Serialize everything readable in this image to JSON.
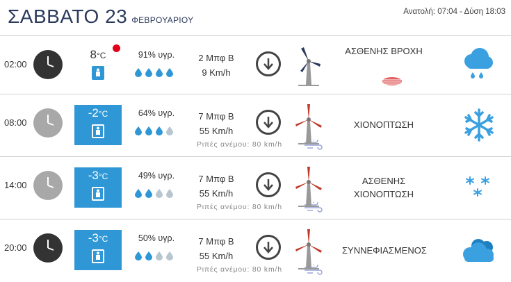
{
  "header": {
    "day": "ΣΑΒΒΑΤΟ 23",
    "month": "ΦΕΒΡΟΥΑΡΙΟΥ",
    "sun_times": "Ανατολή: 07:04 - Δύση 18:03"
  },
  "rows": [
    {
      "time": "02:00",
      "clock": "night-clock-icon",
      "temperature": "8",
      "temp_unit": "°C",
      "humidity": "91% υγρ.",
      "humidity_drops_filled": 4,
      "wind_beaufort": "2 Μπφ Β",
      "wind_speed": "9 Km/h",
      "gusts": "",
      "condition_line1": "ΑΣΘΕΝΗΣ ΒΡΟΧΗ",
      "condition_line2": "",
      "icon": "cloud-rain-icon"
    },
    {
      "time": "08:00",
      "clock": "day-clock-icon",
      "temperature": "-2",
      "temp_unit": "°C",
      "humidity": "64% υγρ.",
      "humidity_drops_filled": 3,
      "wind_beaufort": "7 Μπφ Β",
      "wind_speed": "55 Km/h",
      "gusts": "Ριπές ανέμου: 80 km/h",
      "condition_line1": "ΧΙΟΝΟΠΤΩΣΗ",
      "condition_line2": "",
      "icon": "snowflake-icon"
    },
    {
      "time": "14:00",
      "clock": "day-clock-icon",
      "temperature": "-3",
      "temp_unit": "°C",
      "humidity": "49% υγρ.",
      "humidity_drops_filled": 2,
      "wind_beaufort": "7 Μπφ Β",
      "wind_speed": "55 Km/h",
      "gusts": "Ριπές ανέμου: 80 km/h",
      "condition_line1": "ΑΣΘΕΝΗΣ",
      "condition_line2": "ΧΙΟΝΟΠΤΩΣΗ",
      "icon": "light-snow-icon"
    },
    {
      "time": "20:00",
      "clock": "night-clock-icon",
      "temperature": "-3",
      "temp_unit": "°C",
      "humidity": "50% υγρ.",
      "humidity_drops_filled": 2,
      "wind_beaufort": "7 Μπφ Β",
      "wind_speed": "55 Km/h",
      "gusts": "Ριπές ανέμου: 80 km/h",
      "condition_line1": "ΣΥΝΝΕΦΙΑΣΜΕΝΟΣ",
      "condition_line2": "",
      "icon": "cloudy-icon"
    }
  ],
  "colors": {
    "title": "#2b3a5c",
    "cold_box": "#2f97d6",
    "drop_filled": "#2f97d6",
    "drop_empty": "#b8c6d0",
    "red_dot": "#e2001a",
    "turbine_blade_calm": "#2b3a5c",
    "turbine_blade_strong": "#c0392b"
  }
}
